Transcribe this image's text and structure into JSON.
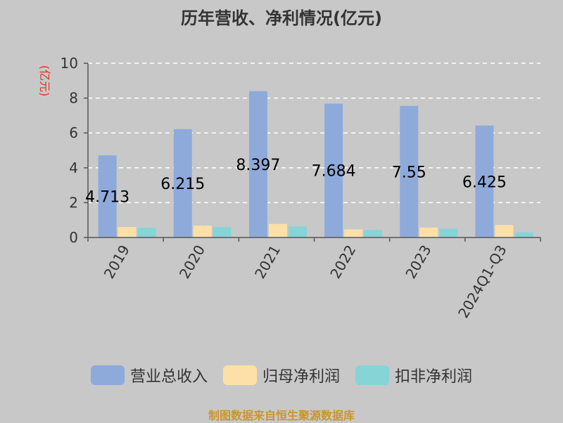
{
  "chart_data": {
    "type": "bar",
    "title": "历年营收、净利情况(亿元)",
    "ylabel": "(亿元)",
    "xlabel": "",
    "categories": [
      "2019",
      "2020",
      "2021",
      "2022",
      "2023",
      "2024Q1-Q3"
    ],
    "ylim": [
      0,
      10
    ],
    "yticks": [
      0,
      2,
      4,
      6,
      8,
      10
    ],
    "grid": true,
    "legend_position": "bottom",
    "series": [
      {
        "name": "营业总收入",
        "color": "#8eaadb",
        "values": [
          4.713,
          6.215,
          8.397,
          7.684,
          7.55,
          6.425
        ],
        "data_labels": [
          "4.713",
          "6.215",
          "8.397",
          "7.684",
          "7.55",
          "6.425"
        ]
      },
      {
        "name": "归母净利润",
        "color": "#fce0a8",
        "values": [
          0.6,
          0.68,
          0.78,
          0.47,
          0.57,
          0.72
        ]
      },
      {
        "name": "扣非净利润",
        "color": "#86d4d6",
        "values": [
          0.56,
          0.6,
          0.63,
          0.43,
          0.51,
          0.3
        ]
      }
    ]
  },
  "source_note": "制图数据来自恒生聚源数据库"
}
